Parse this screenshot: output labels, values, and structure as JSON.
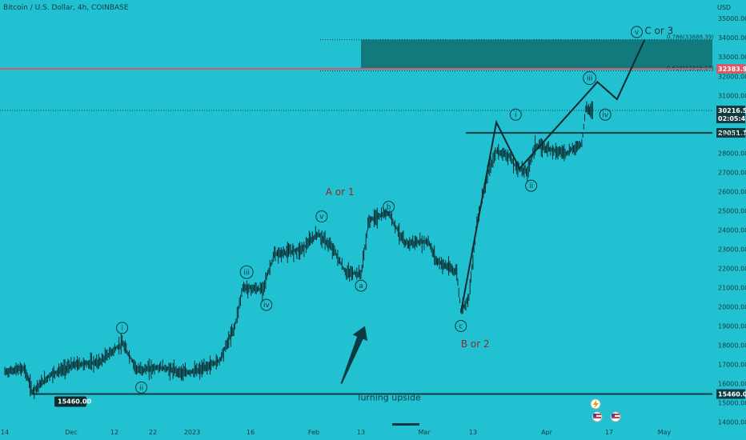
{
  "header": {
    "title": "Bitcoin / U.S. Dollar, 4h, COINBASE",
    "currency": "USD"
  },
  "chart_data": {
    "type": "candlestick",
    "title": "Bitcoin / U.S. Dollar, 4h, COINBASE",
    "ylabel": "USD",
    "ylim": [
      13900,
      35300
    ],
    "y_ticks": [
      "35000.00",
      "34000.00",
      "33000.00",
      "32000.00",
      "31000.00",
      "29000.00",
      "28000.00",
      "27000.00",
      "26000.00",
      "25000.00",
      "24000.00",
      "23000.00",
      "22000.00",
      "21000.00",
      "20000.00",
      "19000.00",
      "18000.00",
      "17000.00",
      "16000.00",
      "15000.00",
      "14000.00"
    ],
    "x_ticks": [
      "14",
      "Dec",
      "12",
      "22",
      "2023",
      "16",
      "Feb",
      "13",
      "Mar",
      "13",
      "Apr",
      "17",
      "May"
    ],
    "price_path": [
      {
        "date": "2022-11-14",
        "price": 16600
      },
      {
        "date": "2022-11-19",
        "price": 16800
      },
      {
        "date": "2022-11-21",
        "price": 15600
      },
      {
        "date": "2022-11-26",
        "price": 16500
      },
      {
        "date": "2022-12-02",
        "price": 17000
      },
      {
        "date": "2022-12-08",
        "price": 17100
      },
      {
        "date": "2022-12-14",
        "price": 18100
      },
      {
        "date": "2022-12-18",
        "price": 16700
      },
      {
        "date": "2022-12-24",
        "price": 16850
      },
      {
        "date": "2022-12-30",
        "price": 16550
      },
      {
        "date": "2023-01-03",
        "price": 16700
      },
      {
        "date": "2023-01-08",
        "price": 17200
      },
      {
        "date": "2023-01-12",
        "price": 19000
      },
      {
        "date": "2023-01-14",
        "price": 21000
      },
      {
        "date": "2023-01-19",
        "price": 20900
      },
      {
        "date": "2023-01-22",
        "price": 22700
      },
      {
        "date": "2023-01-29",
        "price": 23000
      },
      {
        "date": "2023-02-02",
        "price": 23800
      },
      {
        "date": "2023-02-06",
        "price": 23000
      },
      {
        "date": "2023-02-09",
        "price": 21800
      },
      {
        "date": "2023-02-13",
        "price": 21700
      },
      {
        "date": "2023-02-15",
        "price": 24500
      },
      {
        "date": "2023-02-20",
        "price": 24900
      },
      {
        "date": "2023-02-24",
        "price": 23300
      },
      {
        "date": "2023-03-02",
        "price": 23400
      },
      {
        "date": "2023-03-04",
        "price": 22400
      },
      {
        "date": "2023-03-09",
        "price": 21800
      },
      {
        "date": "2023-03-10",
        "price": 19800
      },
      {
        "date": "2023-03-12",
        "price": 20500
      },
      {
        "date": "2023-03-14",
        "price": 24500
      },
      {
        "date": "2023-03-17",
        "price": 27000
      },
      {
        "date": "2023-03-19",
        "price": 28100
      },
      {
        "date": "2023-03-22",
        "price": 27900
      },
      {
        "date": "2023-03-24",
        "price": 27300
      },
      {
        "date": "2023-03-27",
        "price": 27000
      },
      {
        "date": "2023-03-29",
        "price": 28400
      },
      {
        "date": "2023-04-02",
        "price": 28200
      },
      {
        "date": "2023-04-06",
        "price": 28000
      },
      {
        "date": "2023-04-10",
        "price": 28500
      },
      {
        "date": "2023-04-11",
        "price": 30300
      },
      {
        "date": "2023-04-13",
        "price": 30216.53
      }
    ],
    "projection_path": [
      {
        "date": "2023-03-10",
        "price": 19700
      },
      {
        "date": "2023-03-19",
        "price": 29600
      },
      {
        "date": "2023-03-25",
        "price": 27200
      },
      {
        "date": "2023-04-14",
        "price": 31700
      },
      {
        "date": "2023-04-19",
        "price": 30800
      },
      {
        "date": "2023-04-26",
        "price": 33900
      }
    ],
    "horizontal_levels": [
      {
        "price": 32383.96,
        "label": "32383.96",
        "color": "#e05563"
      },
      {
        "price": 30216.53,
        "label": "30216.53",
        "sublabel": "02:05:49",
        "color": "#123a3f"
      },
      {
        "price": 29051.1,
        "label": "29051.10",
        "color": "#123a3f"
      },
      {
        "price": 15460.0,
        "label": "15460.00",
        "color": "#0b3b40"
      }
    ],
    "fib_lines": [
      {
        "price": 33900,
        "label": "0.786(33888.39)"
      },
      {
        "price": 32280,
        "label": "0.618(32315.17)"
      }
    ],
    "zone": {
      "price_top": 33900,
      "price_bottom": 32400,
      "date_start": "2023-02-13",
      "color": "#127a7c"
    },
    "wave_labels": [
      {
        "text": "i",
        "date": "2022-12-14",
        "price": 18900
      },
      {
        "text": "ii",
        "date": "2022-12-19",
        "price": 15800
      },
      {
        "text": "iii",
        "date": "2023-01-15",
        "price": 21800
      },
      {
        "text": "iv",
        "date": "2023-01-20",
        "price": 20100
      },
      {
        "text": "v",
        "date": "2023-02-03",
        "price": 24700
      },
      {
        "text": "a",
        "date": "2023-02-13",
        "price": 21100
      },
      {
        "text": "b",
        "date": "2023-02-20",
        "price": 25200
      },
      {
        "text": "c",
        "date": "2023-03-10",
        "price": 19000
      },
      {
        "text": "i",
        "date": "2023-03-24",
        "price": 30000
      },
      {
        "text": "ii",
        "date": "2023-03-28",
        "price": 26300
      },
      {
        "text": "iii",
        "date": "2023-04-12",
        "price": 31900
      },
      {
        "text": "iv",
        "date": "2023-04-16",
        "price": 30000
      },
      {
        "text": "v",
        "date": "2023-04-24",
        "price": 34300
      }
    ],
    "annotations": [
      {
        "text": "A",
        "suffix": "or 1",
        "date": "2023-02-04",
        "price": 25800,
        "color": "#8b2b2b"
      },
      {
        "text": "B",
        "suffix": "or 2",
        "date": "2023-03-10",
        "price": 17900,
        "color": "#8b2b2b"
      },
      {
        "text": "C",
        "suffix": "or 3",
        "date": "2023-04-26",
        "price": 34200,
        "color": "#0b3b40"
      },
      {
        "text": "Turning upside",
        "date": "2023-02-20",
        "price": 15120,
        "color": "#0b3b40"
      }
    ],
    "arrow": {
      "from_date": "2023-02-08",
      "from_price": 16000,
      "to_date": "2023-02-14",
      "to_price": 19000
    }
  }
}
